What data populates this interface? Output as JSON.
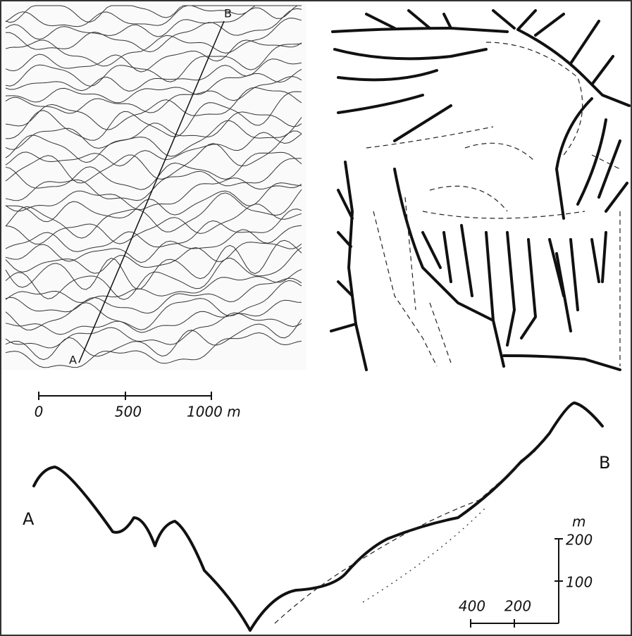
{
  "map": {
    "start_label": "A",
    "end_label": "B"
  },
  "map_scale": {
    "ticks": [
      "0",
      "500",
      "1000 m"
    ]
  },
  "profile": {
    "start_label": "A",
    "end_label": "B",
    "vertical_scale": {
      "unit": "m",
      "ticks": [
        "200",
        "100"
      ]
    },
    "horizontal_scale": {
      "ticks": [
        "400",
        "200"
      ]
    }
  }
}
